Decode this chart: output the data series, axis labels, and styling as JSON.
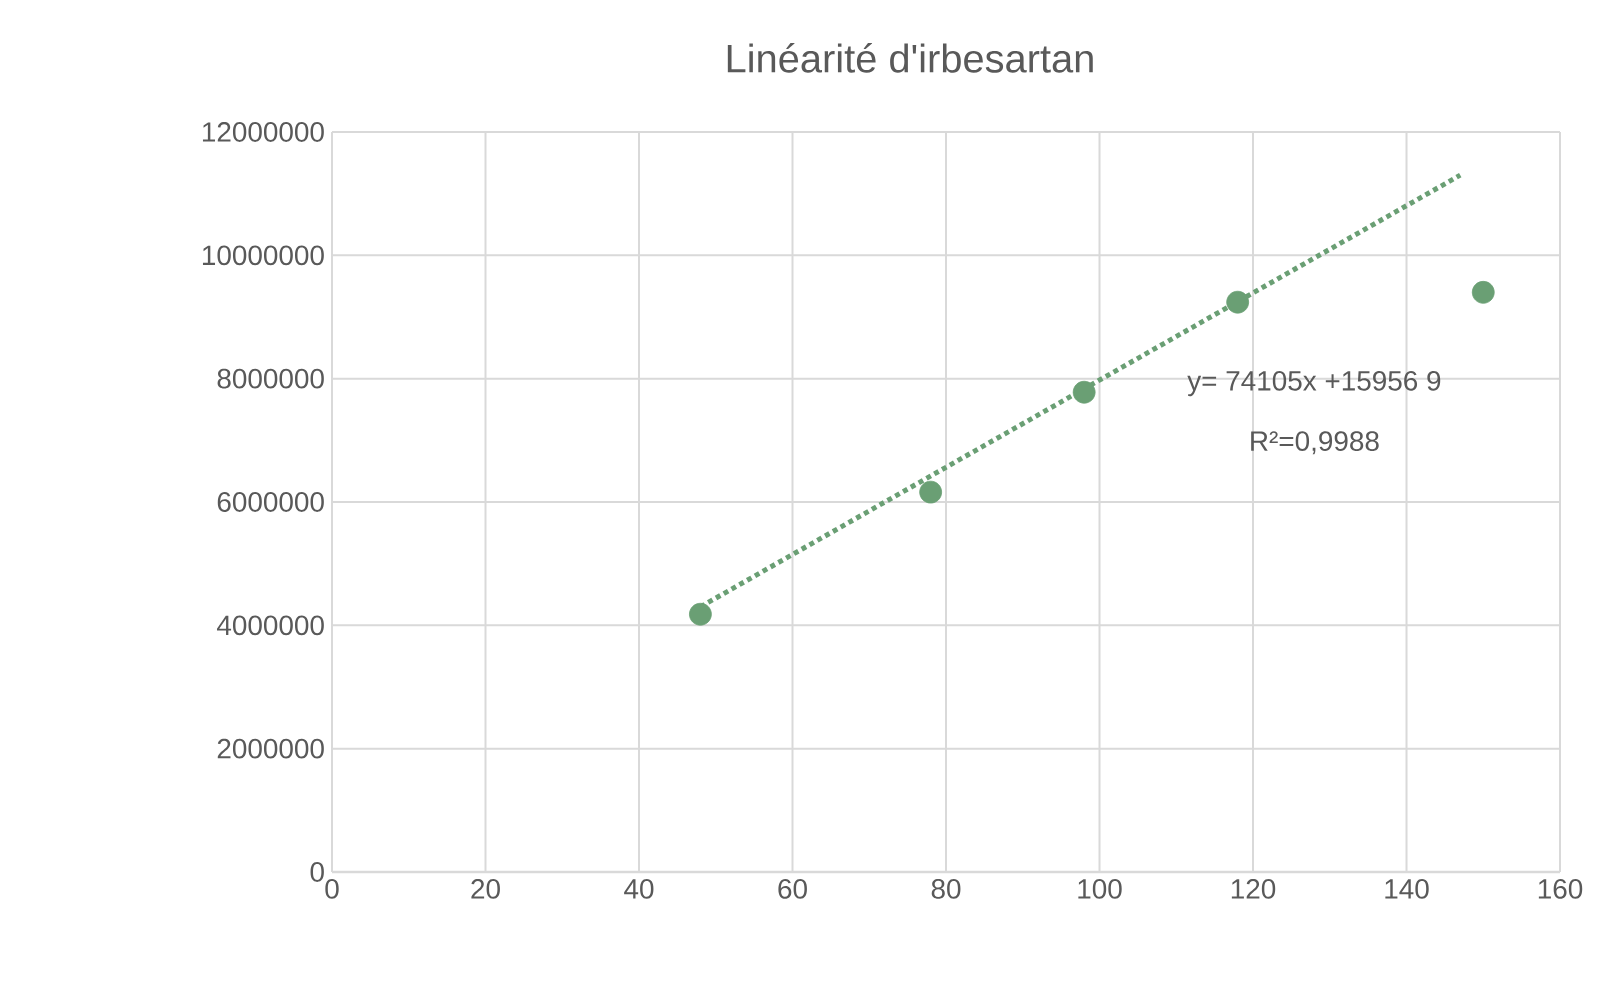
{
  "chart_data": {
    "type": "scatter",
    "title": "Linéarité d'irbesartan",
    "xlim": [
      0,
      160
    ],
    "xticks": [
      0,
      20,
      40,
      60,
      80,
      100,
      120,
      140,
      160
    ],
    "ylim": [
      0,
      12000000
    ],
    "yticks": [
      0,
      2000000,
      4000000,
      6000000,
      8000000,
      10000000,
      12000000
    ],
    "grid": true,
    "marker": "circle",
    "series": [
      {
        "color": "#6a9f74",
        "x": [
          48,
          78,
          98,
          118,
          150
        ],
        "values": [
          4180000,
          6160000,
          7780000,
          9240000,
          9400000
        ]
      },
      {
        "type": "line",
        "color": "#6a9f74",
        "line_style": "dotted",
        "marker": "none",
        "x": [
          48,
          147
        ],
        "values": [
          4300000,
          11300000
        ]
      }
    ],
    "annotations": [
      "y=  74105x +15956 9",
      "R²=0,9988"
    ]
  }
}
